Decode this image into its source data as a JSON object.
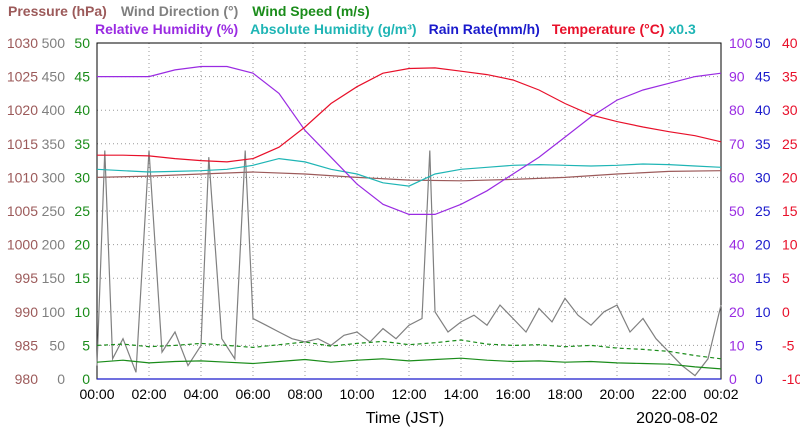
{
  "chart_data": {
    "type": "line",
    "legend": {
      "row1": [
        {
          "text": "Pressure (hPa)",
          "color": "#9c5a5a"
        },
        {
          "text": "Wind Direction (°)",
          "color": "#808080"
        },
        {
          "text": "Wind Speed (m/s)",
          "color": "#1a8c1a"
        }
      ],
      "row2": [
        {
          "text": "Relative Humidity (%)",
          "color": "#9a2be2"
        },
        {
          "text": "Absolute Humidity (g/m³)",
          "color": "#1fb5b5"
        },
        {
          "text": "Rain Rate(mm/h)",
          "color": "#1a1acc"
        },
        {
          "text": "Temperature (°C)",
          "color": "#e8102a"
        },
        {
          "text": "x0.3",
          "color": "#1fb5b5"
        }
      ]
    },
    "xlabel": "Time (JST)",
    "date": "2020-08-02",
    "x_ticks": [
      "00:00",
      "02:00",
      "04:00",
      "06:00",
      "08:00",
      "10:00",
      "12:00",
      "14:00",
      "16:00",
      "18:00",
      "20:00",
      "22:00",
      "00:02"
    ],
    "x_range_hours": [
      0,
      24
    ],
    "axes": {
      "pressure": {
        "color": "#9c5a5a",
        "ticks": [
          "1030",
          "1025",
          "1020",
          "1015",
          "1010",
          "1005",
          "1000",
          "995",
          "990",
          "985",
          "980"
        ],
        "range": [
          980,
          1030
        ]
      },
      "wind_direction": {
        "color": "#808080",
        "ticks": [
          "500",
          "450",
          "400",
          "350",
          "300",
          "250",
          "200",
          "150",
          "100",
          "50",
          "0"
        ],
        "range": [
          0,
          500
        ]
      },
      "wind_speed": {
        "color": "#1a8c1a",
        "ticks": [
          "50",
          "45",
          "40",
          "35",
          "30",
          "25",
          "20",
          "15",
          "10",
          "5",
          "0"
        ],
        "range": [
          0,
          50
        ]
      },
      "relative_humidity": {
        "color": "#9a2be2",
        "ticks": [
          "100",
          "90",
          "80",
          "70",
          "60",
          "50",
          "40",
          "30",
          "20",
          "10",
          "0"
        ],
        "range": [
          0,
          100
        ]
      },
      "rain_rate": {
        "color": "#1a1acc",
        "ticks": [
          "50",
          "45",
          "40",
          "35",
          "30",
          "25",
          "20",
          "15",
          "10",
          "5",
          "0"
        ],
        "range": [
          0,
          50
        ]
      },
      "temperature": {
        "color": "#e8102a",
        "ticks": [
          "40",
          "35",
          "30",
          "25",
          "20",
          "15",
          "10",
          "5",
          "0",
          "-5",
          "-10"
        ],
        "range": [
          -10,
          40
        ]
      }
    },
    "grid": true,
    "series": [
      {
        "name": "Temperature (°C)",
        "key": "temperature",
        "axis": "temperature",
        "color": "#e8102a",
        "x": [
          0,
          1,
          2,
          3,
          4,
          5,
          6,
          7,
          8,
          9,
          10,
          11,
          12,
          13,
          14,
          15,
          16,
          17,
          18,
          19,
          20,
          21,
          22,
          23,
          24
        ],
        "y": [
          23.3,
          23.3,
          23.2,
          22.8,
          22.5,
          22.3,
          22.8,
          24.5,
          27.5,
          31.0,
          33.5,
          35.5,
          36.2,
          36.3,
          35.8,
          35.3,
          34.5,
          33.0,
          31.0,
          29.3,
          28.3,
          27.5,
          26.8,
          26.2,
          25.3
        ]
      },
      {
        "name": "Relative Humidity (%)",
        "key": "relative_humidity",
        "axis": "relative_humidity",
        "color": "#9a2be2",
        "x": [
          0,
          1,
          2,
          3,
          4,
          5,
          6,
          7,
          8,
          9,
          10,
          11,
          12,
          13,
          14,
          15,
          16,
          17,
          18,
          19,
          20,
          21,
          22,
          23,
          24
        ],
        "y": [
          90,
          90,
          90,
          92,
          93,
          93,
          91,
          85,
          74,
          66,
          58,
          52,
          49,
          49,
          52,
          56,
          61,
          66,
          72,
          78,
          83,
          86,
          88,
          90,
          91
        ]
      },
      {
        "name": "Absolute Humidity (g/m³)",
        "key": "absolute_humidity",
        "axis": "wind_speed",
        "color": "#1fb5b5",
        "x": [
          0,
          1,
          2,
          3,
          4,
          5,
          6,
          7,
          8,
          9,
          10,
          11,
          12,
          13,
          14,
          15,
          16,
          17,
          18,
          19,
          20,
          21,
          22,
          23,
          24
        ],
        "y": [
          31.2,
          31.0,
          30.8,
          30.9,
          31.0,
          31.2,
          31.8,
          32.8,
          32.3,
          31.2,
          30.5,
          29.2,
          28.7,
          30.5,
          31.2,
          31.5,
          31.8,
          31.9,
          31.8,
          31.7,
          31.8,
          32.0,
          31.9,
          31.7,
          31.5
        ]
      },
      {
        "name": "Pressure (hPa)",
        "key": "pressure",
        "axis": "pressure",
        "color": "#9c5a5a",
        "x": [
          0,
          2,
          4,
          6,
          8,
          10,
          12,
          14,
          16,
          18,
          20,
          22,
          24
        ],
        "y": [
          1010.0,
          1010.2,
          1010.5,
          1010.8,
          1010.5,
          1010.0,
          1009.6,
          1009.5,
          1009.7,
          1010.0,
          1010.5,
          1010.9,
          1011.0
        ]
      },
      {
        "name": "Wind Direction (°)",
        "key": "wind_direction",
        "axis": "wind_direction",
        "color": "#808080",
        "x": [
          0,
          0.3,
          0.6,
          1.0,
          1.5,
          2.0,
          2.5,
          3.0,
          3.5,
          4.0,
          4.3,
          4.8,
          5.3,
          5.7,
          6.0,
          6.5,
          7.0,
          7.5,
          8.0,
          8.5,
          9.0,
          9.5,
          10.0,
          10.5,
          11.0,
          11.5,
          12.0,
          12.5,
          12.8,
          13.0,
          13.5,
          14.0,
          14.5,
          15.0,
          15.5,
          16.0,
          16.5,
          17.0,
          17.5,
          18.0,
          18.5,
          19.0,
          19.5,
          20.0,
          20.5,
          21.0,
          21.5,
          22.0,
          22.5,
          23.0,
          23.5,
          24.0
        ],
        "y": [
          20,
          340,
          30,
          60,
          10,
          340,
          40,
          70,
          20,
          50,
          330,
          60,
          30,
          340,
          90,
          80,
          70,
          60,
          55,
          60,
          50,
          65,
          70,
          55,
          75,
          60,
          80,
          90,
          340,
          100,
          70,
          85,
          95,
          80,
          110,
          90,
          70,
          105,
          85,
          120,
          95,
          80,
          100,
          110,
          70,
          90,
          60,
          40,
          20,
          5,
          30,
          110
        ]
      },
      {
        "name": "Wind Speed (m/s)",
        "key": "wind_speed",
        "axis": "wind_speed",
        "color": "#1a8c1a",
        "x": [
          0,
          1,
          2,
          3,
          4,
          5,
          6,
          7,
          8,
          9,
          10,
          11,
          12,
          13,
          14,
          15,
          16,
          17,
          18,
          19,
          20,
          21,
          22,
          23,
          24
        ],
        "y": [
          2.5,
          2.8,
          2.4,
          2.6,
          2.7,
          2.5,
          2.3,
          2.6,
          2.9,
          2.5,
          2.8,
          3.0,
          2.7,
          2.9,
          3.1,
          2.8,
          2.6,
          2.7,
          2.5,
          2.6,
          2.4,
          2.3,
          2.2,
          1.8,
          1.5
        ]
      },
      {
        "name": "Wind Speed (m/s) gust",
        "key": "wind_gust",
        "axis": "wind_speed",
        "color": "#1a8c1a",
        "dashed": true,
        "x": [
          0,
          1,
          2,
          3,
          4,
          5,
          6,
          7,
          8,
          9,
          10,
          11,
          12,
          13,
          14,
          15,
          16,
          17,
          18,
          19,
          20,
          21,
          22,
          23,
          24
        ],
        "y": [
          5.0,
          5.2,
          4.8,
          5.0,
          5.3,
          5.0,
          4.7,
          5.1,
          5.5,
          4.9,
          5.3,
          5.6,
          5.1,
          5.4,
          5.8,
          5.2,
          5.0,
          5.1,
          4.8,
          5.0,
          4.6,
          4.4,
          4.1,
          3.5,
          3.0
        ]
      },
      {
        "name": "Rain Rate(mm/h)",
        "key": "rain_rate",
        "axis": "rain_rate",
        "color": "#1a1acc",
        "x": [
          0,
          24
        ],
        "y": [
          0,
          0
        ]
      }
    ]
  }
}
